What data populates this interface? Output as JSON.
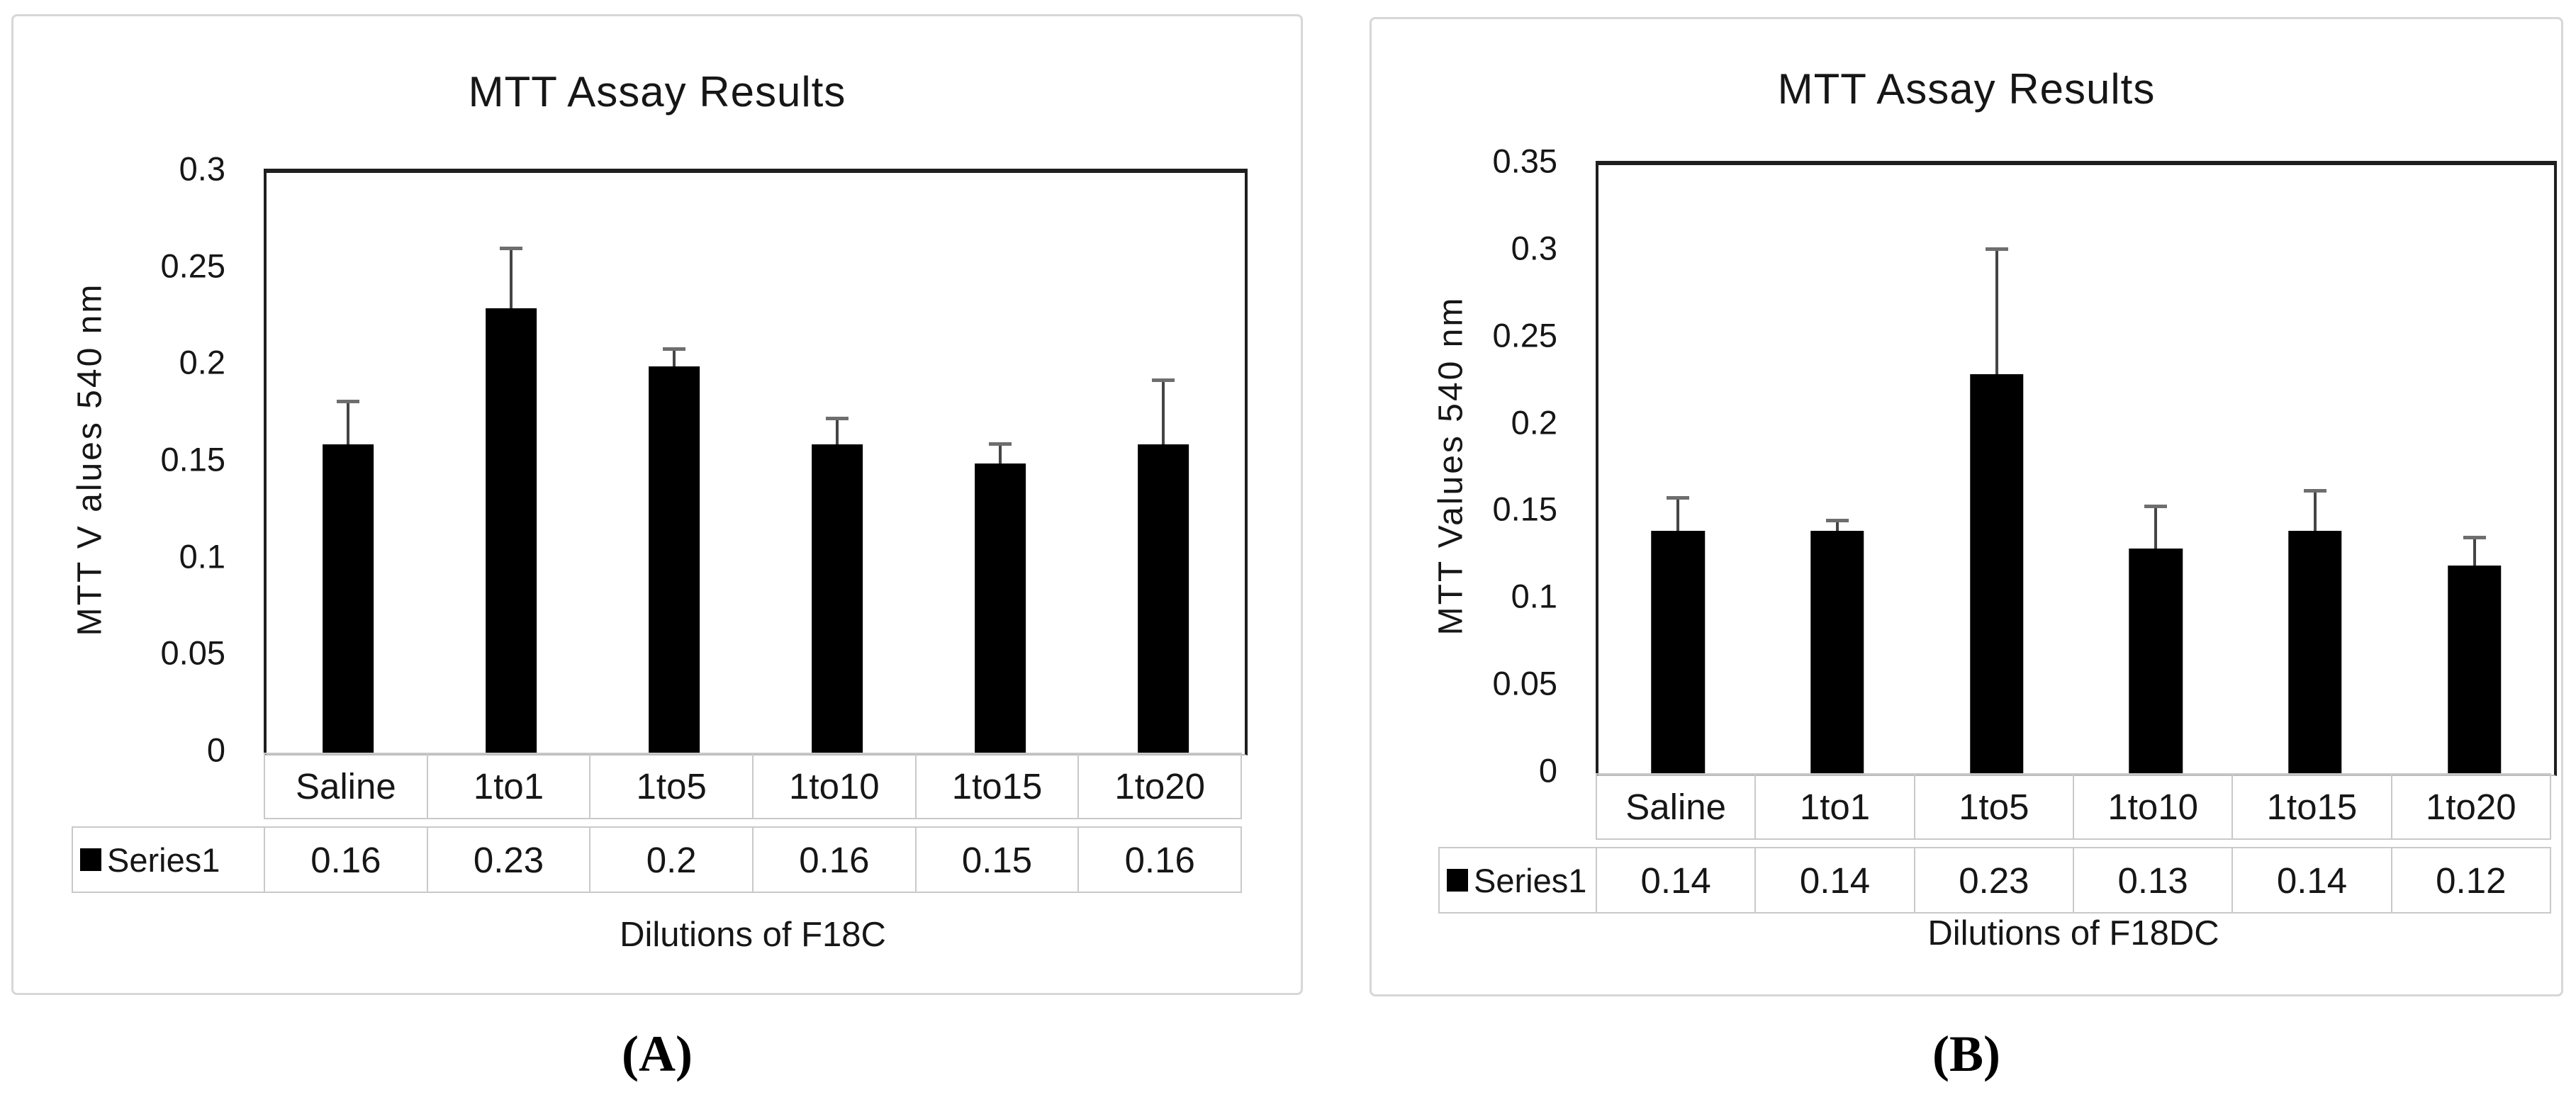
{
  "chart_data": [
    {
      "type": "bar",
      "panel": "A",
      "caption": "(A)",
      "title": "MTT Assay Results",
      "xlabel": "Dilutions of F18C",
      "ylabel": "MTT V alues 540 nm",
      "categories": [
        "Saline",
        "1to1",
        "1to5",
        "1to10",
        "1to15",
        "1to20"
      ],
      "series": [
        {
          "name": "Series1",
          "values": [
            0.16,
            0.23,
            0.2,
            0.16,
            0.15,
            0.16
          ],
          "errors_plus": [
            0.023,
            0.032,
            0.01,
            0.014,
            0.011,
            0.034
          ]
        }
      ],
      "table_values": [
        "0.16",
        "0.23",
        "0.2",
        "0.16",
        "0.15",
        "0.16"
      ],
      "ylim": [
        0,
        0.3
      ],
      "ytick_labels": [
        "0.3",
        "0.25",
        "0.2",
        "0.15",
        "0.1",
        "0.05",
        "0"
      ],
      "grid": false,
      "legend_position": "data-table-left",
      "bar_color": "#000000",
      "error_bar_color": "#454545"
    },
    {
      "type": "bar",
      "panel": "B",
      "caption": "(B)",
      "title": "MTT Assay Results",
      "xlabel": "Dilutions of F18DC",
      "ylabel": "MTT Values 540 nm",
      "categories": [
        "Saline",
        "1to1",
        "1to5",
        "1to10",
        "1to15",
        "1to20"
      ],
      "series": [
        {
          "name": "Series1",
          "values": [
            0.14,
            0.14,
            0.23,
            0.13,
            0.14,
            0.12
          ],
          "errors_plus": [
            0.02,
            0.007,
            0.073,
            0.025,
            0.024,
            0.017
          ]
        }
      ],
      "table_values": [
        "0.14",
        "0.14",
        "0.23",
        "0.13",
        "0.14",
        "0.12"
      ],
      "ylim": [
        0,
        0.35
      ],
      "ytick_labels": [
        "0.35",
        "0.3",
        "0.25",
        "0.2",
        "0.15",
        "0.1",
        "0.05",
        "0"
      ],
      "grid": false,
      "legend_position": "data-table-left",
      "bar_color": "#000000",
      "error_bar_color": "#454545"
    }
  ]
}
